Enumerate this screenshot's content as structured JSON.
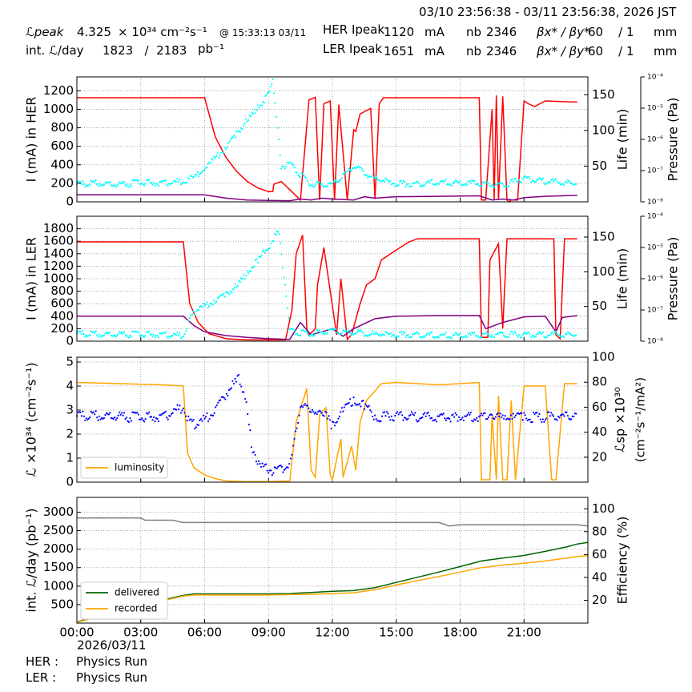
{
  "header": {
    "time_range": "03/10 23:56:38 - 03/11 23:56:38, 2026 JST",
    "lpeak_label": "ℒpeak",
    "lpeak_value": "4.325",
    "lpeak_unit": "× 10³⁴ cm⁻²s⁻¹",
    "lpeak_time": "@ 15:33:13 03/11",
    "intl_label": "int. ℒ/day",
    "intl_values": "1823   /  2183",
    "intl_unit": "pb⁻¹",
    "her_label": "HER Ipeak",
    "her_value": "1120",
    "ler_label": "LER Ipeak",
    "ler_value": "1651",
    "current_unit": "mA",
    "nb_label": "nb",
    "her_nb": "2346",
    "ler_nb": "2346",
    "beta_label": "βx* / βy*",
    "her_beta": "60    / 1",
    "ler_beta": "60    / 1",
    "beta_unit": "mm"
  },
  "footer": {
    "her_label": "HER :",
    "her_status": "Physics Run",
    "ler_label": "LER :",
    "ler_status": "Physics Run"
  },
  "colors": {
    "her_current": "#0000ff",
    "lifetime": "#ff0000",
    "vacuum": "#00ffff",
    "pressure2": "#800080",
    "luminosity": "#ffa500",
    "specific": "#0000ff",
    "delivered": "#006400",
    "recorded": "#ffa500",
    "efficiency": "#808080"
  },
  "chart_data": [
    {
      "type": "line",
      "ylabel": "I (mA) in HER",
      "ylabel2": "Life (min)",
      "ylabel3": "Pressure (Pa)",
      "ylim": [
        0,
        1350
      ],
      "yticks": [
        0,
        200,
        400,
        600,
        800,
        1000,
        1200
      ],
      "y2lim": [
        0,
        175
      ],
      "y2ticks": [
        50,
        100,
        150
      ],
      "plog_ticks": [
        "10⁻⁸",
        "10⁻⁷",
        "10⁻⁶",
        "10⁻⁵",
        "10⁻⁴"
      ],
      "series": [
        {
          "color_key": "lifetime",
          "axis": "left",
          "x": [
            0,
            6,
            6.5,
            7,
            7.5,
            8,
            8.5,
            9,
            9.2,
            9.25,
            9.6,
            10.5,
            10.9,
            11.2,
            11.4,
            11.6,
            11.9,
            12.1,
            12.3,
            12.7,
            13.0,
            13.1,
            13.3,
            13.8,
            14.0,
            14.2,
            14.4,
            14.6,
            17.0,
            18.9,
            19.0,
            19.2,
            19.5,
            19.6,
            19.7,
            19.8,
            20.0,
            20.2,
            20.3,
            20.4,
            20.7,
            21.0,
            21.2,
            21.5,
            22.0,
            23.2,
            23.5
          ],
          "y": [
            1125,
            1125,
            700,
            480,
            330,
            220,
            150,
            110,
            110,
            190,
            220,
            20,
            1100,
            1130,
            20,
            1060,
            1090,
            20,
            1050,
            20,
            780,
            760,
            950,
            1010,
            30,
            1060,
            1125,
            1125,
            1125,
            1125,
            20,
            20,
            1000,
            20,
            1150,
            20,
            1140,
            20,
            0,
            20,
            20,
            1090,
            1060,
            1030,
            1090,
            1080,
            1080
          ]
        },
        {
          "color_key": "pressure2",
          "axis": "left",
          "x": [
            0,
            6,
            7,
            8,
            9,
            10,
            10.5,
            11,
            11.5,
            12,
            13,
            13.5,
            14,
            15,
            17,
            18.9,
            19.5,
            20,
            20.5,
            21,
            22,
            23.5
          ],
          "y": [
            75,
            75,
            40,
            20,
            15,
            12,
            30,
            20,
            40,
            30,
            20,
            55,
            40,
            55,
            60,
            65,
            20,
            30,
            20,
            45,
            60,
            70
          ]
        },
        {
          "color_key": "vacuum",
          "axis": "left",
          "mode": "scatter",
          "x": [
            0,
            1,
            2,
            3,
            4,
            5,
            5.5,
            6,
            6.5,
            7,
            7.5,
            8,
            8.5,
            8.8,
            9.0,
            9.2,
            9.6,
            10,
            11,
            12,
            13,
            14,
            15,
            16,
            17,
            18,
            19,
            20,
            21,
            22,
            23.5
          ],
          "y": [
            190,
            200,
            180,
            210,
            200,
            220,
            260,
            360,
            470,
            590,
            740,
            880,
            1010,
            1100,
            1200,
            1300,
            380,
            400,
            190,
            180,
            380,
            250,
            200,
            190,
            220,
            200,
            200,
            180,
            250,
            220,
            200
          ]
        }
      ]
    },
    {
      "type": "line",
      "ylabel": "I (mA) in LER",
      "ylabel2": "Life (min)",
      "ylabel3": "Pressure (Pa)",
      "ylim": [
        0,
        2000
      ],
      "yticks": [
        0,
        200,
        400,
        600,
        800,
        1000,
        1200,
        1400,
        1600,
        1800
      ],
      "y2lim": [
        0,
        180
      ],
      "y2ticks": [
        50,
        100,
        150
      ],
      "plog_ticks": [
        "10⁻⁸",
        "10⁻⁷",
        "10⁻⁶",
        "10⁻⁵",
        "10⁻⁴"
      ],
      "series": [
        {
          "color_key": "lifetime",
          "axis": "left",
          "x": [
            0,
            5.0,
            5.3,
            5.7,
            6.2,
            7,
            8,
            9,
            9.8,
            10.1,
            10.3,
            10.6,
            10.8,
            10.9,
            11.2,
            11.3,
            11.6,
            12.2,
            12.4,
            12.7,
            12.9,
            13.3,
            13.6,
            14.0,
            14.3,
            15.0,
            15.6,
            16.0,
            18.9,
            19.0,
            19.3,
            19.4,
            19.8,
            20.0,
            20.2,
            20.4,
            20.5,
            21,
            22.4,
            22.5,
            22.7,
            22.9,
            23.5
          ],
          "y": [
            1590,
            1590,
            600,
            300,
            120,
            40,
            20,
            20,
            20,
            500,
            1400,
            1700,
            200,
            100,
            200,
            900,
            1500,
            100,
            1000,
            30,
            100,
            600,
            900,
            1000,
            1300,
            1460,
            1590,
            1640,
            1640,
            60,
            60,
            1300,
            1560,
            200,
            1640,
            1640,
            1640,
            1640,
            1640,
            100,
            40,
            1640,
            1640
          ]
        },
        {
          "color_key": "pressure2",
          "axis": "left",
          "x": [
            0,
            5.0,
            5.5,
            6,
            7,
            8,
            9,
            10,
            10.5,
            11,
            12,
            12.5,
            13,
            14,
            15,
            17,
            18.9,
            19.2,
            20,
            21,
            22,
            22.5,
            22.8,
            23.5
          ],
          "y": [
            400,
            400,
            250,
            150,
            90,
            60,
            40,
            30,
            300,
            100,
            200,
            80,
            200,
            360,
            400,
            410,
            410,
            200,
            300,
            390,
            400,
            150,
            380,
            410
          ]
        },
        {
          "color_key": "vacuum",
          "axis": "left",
          "mode": "scatter",
          "x": [
            0,
            1,
            2,
            3,
            4,
            5,
            5.3,
            5.6,
            6,
            6.5,
            7,
            7.5,
            8,
            8.5,
            9.0,
            9.3,
            9.5,
            10,
            11,
            12,
            13,
            14,
            15,
            16,
            17,
            18,
            19,
            20,
            21,
            22,
            23.5
          ],
          "y": [
            120,
            110,
            100,
            110,
            100,
            90,
            350,
            500,
            560,
            650,
            760,
            880,
            1080,
            1300,
            1500,
            1680,
            1750,
            150,
            120,
            160,
            130,
            110,
            110,
            100,
            100,
            90,
            100,
            110,
            100,
            100,
            110
          ]
        }
      ]
    },
    {
      "type": "line",
      "ylabel": "ℒ ×10³⁴ (cm⁻²s⁻¹)",
      "ylabel2": "ℒsp ×10³⁰",
      "ylabel2b": "(cm⁻²s⁻¹/mA²)",
      "ylim": [
        0,
        5.2
      ],
      "yticks": [
        0,
        1,
        2,
        3,
        4,
        5
      ],
      "y2lim": [
        0,
        100
      ],
      "y2ticks": [
        20,
        40,
        60,
        80,
        100
      ],
      "legend": [
        "luminosity"
      ],
      "legend_loc": "lower left",
      "series": [
        {
          "name": "luminosity",
          "color_key": "luminosity",
          "axis": "left",
          "x": [
            0,
            2,
            4,
            5.0,
            5.2,
            5.5,
            6,
            6.5,
            7,
            8,
            9,
            10,
            10.3,
            10.8,
            11.0,
            11.2,
            11.4,
            11.7,
            11.9,
            12.0,
            12.4,
            12.5,
            12.9,
            13.1,
            13.3,
            13.6,
            14.0,
            14.3,
            15,
            16,
            17,
            18,
            18.9,
            19.0,
            19.4,
            19.5,
            19.7,
            19.8,
            20.0,
            20.2,
            20.4,
            20.6,
            21,
            22.0,
            22.3,
            22.5,
            22.9,
            23.5
          ],
          "y": [
            4.15,
            4.1,
            4.05,
            4.0,
            1.2,
            0.6,
            0.3,
            0.15,
            0.05,
            0.02,
            0.02,
            0.05,
            2.5,
            3.9,
            0.5,
            0.2,
            2.8,
            3.1,
            0.3,
            0.1,
            1.8,
            0.2,
            1.5,
            0.5,
            2.5,
            3.4,
            3.8,
            4.1,
            4.15,
            4.1,
            4.05,
            4.1,
            4.15,
            0.1,
            0.1,
            2.8,
            0.1,
            3.6,
            0.1,
            0.1,
            3.4,
            0.1,
            4.0,
            4.0,
            0.1,
            0.1,
            4.1,
            4.1
          ]
        },
        {
          "color_key": "specific",
          "axis": "right",
          "mode": "scatter",
          "x": [
            0,
            1,
            2,
            3,
            4,
            5.0,
            5.3,
            5.6,
            6,
            6.4,
            6.8,
            7.2,
            7.6,
            7.9,
            8.2,
            8.6,
            9.0,
            9.4,
            9.8,
            10.1,
            10.5,
            11.0,
            11.5,
            12,
            12.5,
            13,
            13.5,
            14,
            15,
            16,
            17,
            18,
            19,
            19.5,
            20,
            20.5,
            21,
            22,
            23,
            23.5
          ],
          "y": [
            53,
            53,
            52,
            52,
            52,
            60,
            48,
            46,
            50,
            56,
            66,
            76,
            82,
            70,
            30,
            12,
            10,
            8,
            12,
            20,
            62,
            55,
            58,
            45,
            60,
            65,
            62,
            52,
            53,
            52,
            52,
            52,
            52,
            55,
            50,
            55,
            52,
            52,
            53,
            53
          ]
        }
      ]
    },
    {
      "type": "line",
      "ylabel": "int. ℒ/day (pb⁻¹)",
      "ylabel2": "Efficiency (%)",
      "ylim": [
        0,
        3400
      ],
      "yticks": [
        500,
        1000,
        1500,
        2000,
        2500,
        3000
      ],
      "y2lim": [
        0,
        110
      ],
      "y2ticks": [
        20,
        40,
        60,
        80,
        100
      ],
      "legend": [
        "delivered",
        "recorded"
      ],
      "legend_loc": "lower left",
      "xticks": [
        "00:00",
        "03:00",
        "06:00",
        "09:00",
        "12:00",
        "15:00",
        "18:00",
        "21:00"
      ],
      "xdate": "2026/03/11",
      "series": [
        {
          "name": "delivered",
          "color_key": "delivered",
          "axis": "left",
          "x": [
            0,
            1,
            2,
            3,
            4,
            5,
            5.5,
            6,
            7,
            8,
            9,
            10,
            11,
            12,
            13,
            14,
            15,
            16,
            17,
            18,
            19,
            20,
            21,
            22,
            23,
            23.5,
            24
          ],
          "y": [
            30,
            200,
            400,
            500,
            620,
            750,
            790,
            790,
            790,
            790,
            790,
            800,
            830,
            860,
            880,
            960,
            1100,
            1240,
            1380,
            1530,
            1680,
            1760,
            1830,
            1940,
            2060,
            2140,
            2180
          ]
        },
        {
          "name": "recorded",
          "color_key": "recorded",
          "axis": "left",
          "x": [
            0,
            1,
            2,
            3,
            4,
            5,
            5.5,
            6,
            7,
            8,
            9,
            10,
            11,
            12,
            13,
            14,
            15,
            16,
            17,
            18,
            19,
            20,
            21,
            22,
            23,
            23.5,
            24
          ],
          "y": [
            20,
            180,
            360,
            470,
            600,
            730,
            760,
            760,
            760,
            760,
            760,
            770,
            780,
            800,
            820,
            900,
            1030,
            1150,
            1260,
            1380,
            1500,
            1570,
            1620,
            1680,
            1760,
            1800,
            1823
          ]
        },
        {
          "color_key": "efficiency",
          "axis": "right",
          "x": [
            0,
            2,
            3,
            3.2,
            4.5,
            5,
            8,
            10,
            12,
            14,
            16,
            17,
            17.5,
            18,
            20,
            22,
            23.5,
            24
          ],
          "y": [
            92,
            92,
            92,
            90,
            90,
            88,
            88,
            88,
            88,
            88,
            88,
            88,
            85,
            86,
            86,
            86,
            86,
            85
          ]
        }
      ]
    }
  ]
}
